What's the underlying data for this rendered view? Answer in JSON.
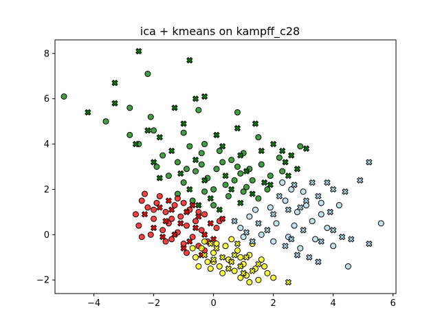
{
  "chart_data": {
    "type": "scatter",
    "title": "ica + kmeans on kampff_c28",
    "xlabel": "",
    "ylabel": "",
    "xlim": [
      -5.3,
      6.1
    ],
    "ylim": [
      -2.6,
      8.6
    ],
    "xticks": [
      -4,
      -2,
      0,
      2,
      4,
      6
    ],
    "yticks": [
      -2,
      0,
      2,
      4,
      6,
      8
    ],
    "xtick_labels": [
      "−4",
      "−2",
      "0",
      "2",
      "4",
      "6"
    ],
    "ytick_labels": [
      "−2",
      "0",
      "2",
      "4",
      "6",
      "8"
    ],
    "grid": false,
    "legend": "none",
    "markers": {
      "circle": "circle",
      "cross": "x-marker"
    },
    "series": [
      {
        "color": "#008000",
        "circles": [
          [
            -5.0,
            6.1
          ],
          [
            -3.6,
            5.0
          ],
          [
            -2.8,
            4.4
          ],
          [
            -2.2,
            7.1
          ],
          [
            -2.8,
            5.6
          ],
          [
            -2.0,
            4.6
          ],
          [
            -2.1,
            5.2
          ],
          [
            -0.5,
            5.5
          ],
          [
            -1.0,
            4.5
          ],
          [
            -0.3,
            4.0
          ],
          [
            0.8,
            5.4
          ],
          [
            1.5,
            4.3
          ],
          [
            -2.5,
            4.0
          ],
          [
            -1.7,
            3.5
          ],
          [
            -1.2,
            3.2
          ],
          [
            -0.8,
            3.9
          ],
          [
            -0.4,
            3.6
          ],
          [
            0.2,
            3.7
          ],
          [
            0.6,
            3.3
          ],
          [
            1.0,
            3.6
          ],
          [
            1.6,
            3.1
          ],
          [
            2.2,
            3.4
          ],
          [
            2.9,
            3.9
          ],
          [
            -1.5,
            2.6
          ],
          [
            -1.0,
            2.3
          ],
          [
            -0.6,
            2.8
          ],
          [
            -0.2,
            2.5
          ],
          [
            0.1,
            2.9
          ],
          [
            0.4,
            2.2
          ],
          [
            0.9,
            2.7
          ],
          [
            1.3,
            2.4
          ],
          [
            1.8,
            2.0
          ],
          [
            2.3,
            2.8
          ],
          [
            -1.2,
            1.8
          ],
          [
            -0.7,
            1.5
          ],
          [
            -0.3,
            1.9
          ],
          [
            0.0,
            1.3
          ],
          [
            0.5,
            1.7
          ],
          [
            1.0,
            1.9
          ],
          [
            1.5,
            1.6
          ],
          [
            -0.4,
            3.1
          ],
          [
            0.3,
            3.2
          ],
          [
            0.8,
            3.0
          ],
          [
            1.2,
            2.9
          ],
          [
            -1.9,
            3.0
          ],
          [
            0.0,
            2.0
          ],
          [
            0.7,
            2.4
          ],
          [
            1.1,
            2.1
          ],
          [
            1.9,
            2.6
          ],
          [
            -0.9,
            2.9
          ]
        ],
        "crosses": [
          [
            -4.2,
            5.4
          ],
          [
            -3.3,
            6.7
          ],
          [
            -3.3,
            5.8
          ],
          [
            -2.5,
            8.1
          ],
          [
            -0.8,
            7.7
          ],
          [
            -0.3,
            6.1
          ],
          [
            -1.3,
            5.6
          ],
          [
            -1.0,
            4.9
          ],
          [
            -2.2,
            4.6
          ],
          [
            -2.6,
            4.0
          ],
          [
            -1.8,
            4.3
          ],
          [
            0.1,
            4.4
          ],
          [
            0.8,
            4.7
          ],
          [
            1.4,
            4.9
          ],
          [
            2.0,
            4.0
          ],
          [
            2.6,
            3.5
          ],
          [
            3.1,
            3.8
          ],
          [
            -2.0,
            3.2
          ],
          [
            -1.4,
            3.7
          ],
          [
            -0.6,
            3.3
          ],
          [
            0.3,
            3.9
          ],
          [
            0.9,
            3.5
          ],
          [
            1.6,
            3.7
          ],
          [
            2.4,
            3.2
          ],
          [
            2.8,
            2.9
          ],
          [
            -1.8,
            2.5
          ],
          [
            -1.1,
            2.7
          ],
          [
            -0.3,
            2.4
          ],
          [
            0.4,
            2.6
          ],
          [
            1.1,
            2.8
          ],
          [
            1.7,
            2.3
          ],
          [
            2.5,
            2.6
          ],
          [
            -0.8,
            2.0
          ],
          [
            -0.1,
            1.6
          ],
          [
            0.6,
            2.0
          ],
          [
            1.3,
            1.8
          ],
          [
            1.9,
            2.2
          ],
          [
            -0.5,
            1.3
          ],
          [
            0.2,
            1.1
          ],
          [
            0.9,
            1.4
          ],
          [
            -0.6,
            6.0
          ],
          [
            2.3,
            3.7
          ]
        ]
      },
      {
        "color": "#ff0000",
        "circles": [
          [
            -2.6,
            0.9
          ],
          [
            -2.4,
            1.5
          ],
          [
            -2.5,
            0.4
          ],
          [
            -2.2,
            1.2
          ],
          [
            -2.0,
            0.7
          ],
          [
            -1.9,
            1.4
          ],
          [
            -1.7,
            0.2
          ],
          [
            -1.6,
            1.0
          ],
          [
            -1.5,
            0.5
          ],
          [
            -1.4,
            -0.2
          ],
          [
            -1.3,
            1.3
          ],
          [
            -1.2,
            0.1
          ],
          [
            -1.1,
            0.8
          ],
          [
            -1.0,
            -0.4
          ],
          [
            -0.9,
            0.4
          ],
          [
            -0.8,
            1.1
          ],
          [
            -0.7,
            -0.1
          ],
          [
            -0.6,
            0.6
          ],
          [
            -0.5,
            -0.5
          ],
          [
            -0.4,
            0.2
          ],
          [
            -0.3,
            0.9
          ],
          [
            -0.2,
            -0.3
          ],
          [
            -2.3,
            1.8
          ],
          [
            -2.1,
            0.0
          ],
          [
            -1.8,
            1.7
          ],
          [
            -1.2,
            1.6
          ],
          [
            -0.9,
            -0.8
          ],
          [
            -0.5,
            1.0
          ],
          [
            0.1,
            0.3
          ],
          [
            -1.6,
            -0.3
          ],
          [
            -2.4,
            -0.1
          ],
          [
            -1.0,
            1.4
          ],
          [
            0.2,
            0.6
          ],
          [
            -0.3,
            -0.7
          ],
          [
            -2.0,
            1.1
          ],
          [
            -1.4,
            0.7
          ]
        ],
        "crosses": [
          [
            -2.3,
            0.9
          ],
          [
            -2.0,
            0.3
          ],
          [
            -1.8,
            1.2
          ],
          [
            -1.6,
            0.6
          ],
          [
            -1.4,
            1.1
          ],
          [
            -1.3,
            0.0
          ],
          [
            -1.1,
            0.5
          ],
          [
            -0.9,
            1.0
          ],
          [
            -0.8,
            -0.3
          ],
          [
            -0.6,
            0.3
          ],
          [
            -0.5,
            0.8
          ],
          [
            -0.3,
            0.0
          ],
          [
            -0.1,
            0.5
          ],
          [
            0.0,
            -0.2
          ],
          [
            -1.7,
            -0.1
          ],
          [
            -1.0,
            -0.6
          ],
          [
            -0.4,
            -0.9
          ],
          [
            -1.5,
            1.5
          ],
          [
            -0.7,
            1.3
          ],
          [
            0.3,
            0.7
          ]
        ]
      },
      {
        "color": "#ffff00",
        "circles": [
          [
            -0.6,
            -1.0
          ],
          [
            -0.4,
            -0.6
          ],
          [
            -0.2,
            -1.2
          ],
          [
            0.0,
            -0.8
          ],
          [
            0.2,
            -1.4
          ],
          [
            0.4,
            -0.5
          ],
          [
            0.5,
            -1.1
          ],
          [
            0.7,
            -1.6
          ],
          [
            0.8,
            -0.7
          ],
          [
            1.0,
            -1.3
          ],
          [
            1.1,
            -1.8
          ],
          [
            1.2,
            -0.9
          ],
          [
            1.4,
            -1.5
          ],
          [
            1.5,
            -2.0
          ],
          [
            1.6,
            -1.1
          ],
          [
            1.8,
            -1.7
          ],
          [
            2.0,
            -1.9
          ],
          [
            1.2,
            -2.1
          ],
          [
            0.9,
            -1.9
          ],
          [
            0.3,
            -1.7
          ],
          [
            -0.1,
            -1.5
          ],
          [
            -0.5,
            -1.4
          ],
          [
            0.6,
            -0.2
          ],
          [
            -0.3,
            -0.3
          ],
          [
            0.1,
            -0.4
          ],
          [
            1.3,
            -0.4
          ],
          [
            0.0,
            -1.2
          ],
          [
            0.9,
            -1.0
          ],
          [
            1.7,
            -1.4
          ],
          [
            -0.7,
            -0.6
          ]
        ],
        "crosses": [
          [
            -0.3,
            -0.9
          ],
          [
            0.1,
            -0.6
          ],
          [
            0.3,
            -1.0
          ],
          [
            0.5,
            -1.5
          ],
          [
            0.7,
            -0.9
          ],
          [
            0.9,
            -1.4
          ],
          [
            1.1,
            -1.0
          ],
          [
            1.3,
            -1.6
          ],
          [
            1.5,
            -1.3
          ],
          [
            0.0,
            -1.1
          ],
          [
            0.6,
            -1.2
          ],
          [
            1.0,
            -1.7
          ],
          [
            -0.1,
            -0.4
          ],
          [
            0.8,
            -0.4
          ],
          [
            2.5,
            -2.1
          ]
        ]
      },
      {
        "color": "#add8e6",
        "circles": [
          [
            2.3,
            2.3
          ],
          [
            2.6,
            2.0
          ],
          [
            3.0,
            1.9
          ],
          [
            3.6,
            1.4
          ],
          [
            4.2,
            1.3
          ],
          [
            5.6,
            0.5
          ],
          [
            4.5,
            -1.4
          ],
          [
            2.8,
            1.0
          ],
          [
            3.3,
            0.6
          ],
          [
            3.8,
            0.3
          ],
          [
            4.0,
            -0.5
          ],
          [
            2.5,
            -0.1
          ],
          [
            2.1,
            0.5
          ],
          [
            1.6,
            0.0
          ],
          [
            1.2,
            0.8
          ],
          [
            0.9,
            0.3
          ],
          [
            2.9,
            -0.6
          ],
          [
            3.4,
            -0.2
          ],
          [
            1.9,
            1.2
          ],
          [
            2.4,
            1.5
          ],
          [
            1.4,
            1.1
          ],
          [
            2.0,
            -0.3
          ],
          [
            3.1,
            1.3
          ],
          [
            3.6,
            0.9
          ],
          [
            2.7,
            0.4
          ],
          [
            1.0,
            -0.1
          ]
        ],
        "crosses": [
          [
            2.7,
            2.2
          ],
          [
            3.3,
            2.3
          ],
          [
            3.8,
            2.3
          ],
          [
            4.0,
            2.0
          ],
          [
            4.4,
            1.9
          ],
          [
            4.9,
            2.4
          ],
          [
            5.2,
            3.2
          ],
          [
            3.5,
            1.7
          ],
          [
            3.1,
            1.5
          ],
          [
            2.5,
            1.1
          ],
          [
            2.0,
            0.9
          ],
          [
            1.5,
            0.5
          ],
          [
            1.1,
            0.1
          ],
          [
            3.0,
            0.2
          ],
          [
            3.6,
            -0.3
          ],
          [
            4.0,
            0.2
          ],
          [
            4.3,
            -0.1
          ],
          [
            4.6,
            -0.2
          ],
          [
            2.4,
            -0.5
          ],
          [
            2.8,
            -0.9
          ],
          [
            3.2,
            -1.0
          ],
          [
            3.5,
            -1.2
          ],
          [
            5.2,
            -0.4
          ],
          [
            1.8,
            0.2
          ],
          [
            2.2,
            1.7
          ],
          [
            2.9,
            1.2
          ],
          [
            0.7,
            0.6
          ],
          [
            1.3,
            -0.3
          ],
          [
            3.9,
            1.0
          ],
          [
            2.6,
            -0.2
          ]
        ]
      }
    ]
  }
}
